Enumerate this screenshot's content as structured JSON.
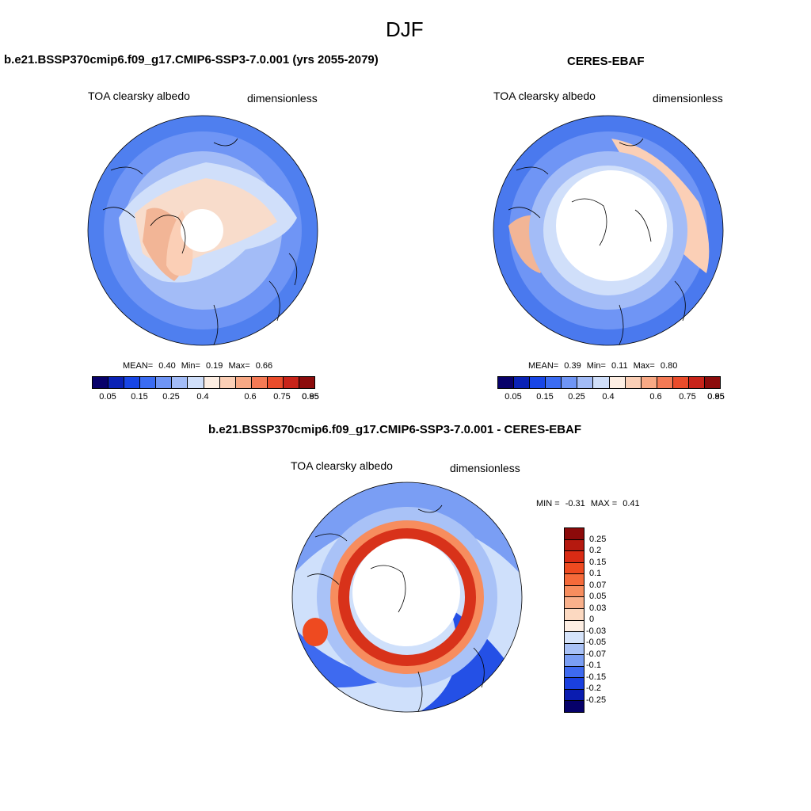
{
  "title": "DJF",
  "panels": [
    {
      "heading": "b.e21.BSSP370cmip6.f09_g17.CMIP6-SSP3-7.0.001 (yrs 2055-2079)",
      "variable": "TOA clearsky albedo",
      "units": "dimensionless",
      "stats": {
        "mean_label": "MEAN=",
        "mean": "0.40",
        "min_label": "Min=",
        "min": "0.19",
        "max_label": "Max=",
        "max": "0.66"
      }
    },
    {
      "heading": "CERES-EBAF",
      "variable": "TOA clearsky albedo",
      "units": "dimensionless",
      "stats": {
        "mean_label": "MEAN=",
        "mean": "0.39",
        "min_label": "Min=",
        "min": "0.11",
        "max_label": "Max=",
        "max": "0.80"
      }
    },
    {
      "heading": "b.e21.BSSP370cmip6.f09_g17.CMIP6-SSP3-7.0.001 - CERES-EBAF",
      "variable": "TOA clearsky albedo",
      "units": "dimensionless",
      "stats": {
        "min_label": "MIN =",
        "min": "-0.31",
        "max_label": "MAX =",
        "max": "0.41"
      }
    }
  ],
  "colorbar_main": {
    "labels": [
      "0.05",
      "0.15",
      "0.25",
      "0.4",
      "0.6",
      "0.75",
      "0.85",
      "0.95"
    ],
    "colors": [
      "#08016a",
      "#0a22b5",
      "#1846e6",
      "#3b6cf2",
      "#6f95f5",
      "#a3bcf7",
      "#d0dffa",
      "#fdeee3",
      "#fbcfb6",
      "#f8a985",
      "#f47a55",
      "#ea4c2b",
      "#c8241a",
      "#8c0c0c"
    ]
  },
  "colorbar_diff": {
    "labels": [
      "0.25",
      "0.2",
      "0.15",
      "0.1",
      "0.07",
      "0.05",
      "0.03",
      "0",
      "-0.03",
      "-0.05",
      "-0.07",
      "-0.1",
      "-0.15",
      "-0.2",
      "-0.25"
    ],
    "colors": [
      "#8c0a0a",
      "#b5190f",
      "#d92b14",
      "#ee4a20",
      "#f56a3a",
      "#f78d5e",
      "#f9b08b",
      "#fcd9c1",
      "#fdeee3",
      "#d6e4fb",
      "#a9c2f7",
      "#7a9ef4",
      "#3e6af0",
      "#1a40e0",
      "#0a1cb0",
      "#06016a"
    ]
  },
  "map_colors": {
    "ocean_model": "#4f7fef",
    "ocean_obs": "#4a79ee",
    "land_warm": "#f2b596",
    "ice_pale": "#f8dccb",
    "diff_bg": "#cfe0fb",
    "diff_red": "#d8321a",
    "diff_blue": "#2450e6"
  }
}
